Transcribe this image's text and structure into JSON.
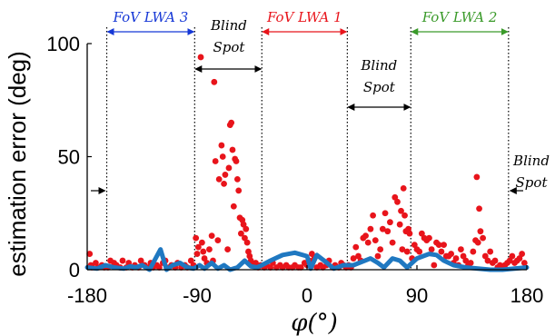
{
  "chart_data": {
    "type": "scatter",
    "xlabel": "φ(°)",
    "ylabel": "estimation error (deg)",
    "xlim": [
      -180,
      180
    ],
    "ylim": [
      0,
      100
    ],
    "x_ticks": [
      -180,
      -90,
      0,
      90,
      180
    ],
    "y_ticks": [
      0,
      50,
      100
    ],
    "x_tick_labels": [
      "-180",
      "-90",
      "0",
      "90",
      "180"
    ],
    "y_tick_labels": [
      "0",
      "50",
      "100"
    ],
    "grid": false,
    "colors": {
      "scatter": "#e8141b",
      "curve": "#1f78c1",
      "lwa1": "#e8141b",
      "lwa2": "#3a9a2a",
      "lwa3": "#1537d6"
    },
    "region_boundaries": [
      -164,
      -92,
      -37,
      33,
      85,
      165
    ],
    "regions": [
      {
        "label": "FoV LWA 3",
        "from": -164,
        "to": -92,
        "color": "#1537d6"
      },
      {
        "label": "Blind Spot",
        "from": -92,
        "to": -37,
        "color": "#000000"
      },
      {
        "label": "FoV LWA 1",
        "from": -37,
        "to": 33,
        "color": "#e8141b"
      },
      {
        "label": "Blind Spot",
        "from": 33,
        "to": 85,
        "color": "#000000"
      },
      {
        "label": "FoV LWA 2",
        "from": 85,
        "to": 165,
        "color": "#3a9a2a"
      },
      {
        "label": "Blind Spot",
        "from": 165,
        "to": 180,
        "color": "#000000"
      }
    ],
    "blind_spot_labels": [
      {
        "line1": "Blind",
        "line2": "Spot"
      },
      {
        "line1": "Blind",
        "line2": "Spot"
      },
      {
        "line1": "Blind",
        "line2": "Spot"
      }
    ],
    "series": [
      {
        "type": "scatter",
        "points": [
          [
            -178,
            7
          ],
          [
            -177,
            2
          ],
          [
            -176,
            1
          ],
          [
            -173,
            3
          ],
          [
            -171,
            1
          ],
          [
            -168,
            2
          ],
          [
            -166,
            1
          ],
          [
            -163,
            1
          ],
          [
            -161,
            4
          ],
          [
            -158,
            3
          ],
          [
            -156,
            2
          ],
          [
            -153,
            1
          ],
          [
            -151,
            4
          ],
          [
            -148,
            1
          ],
          [
            -146,
            3
          ],
          [
            -143,
            1
          ],
          [
            -141,
            2
          ],
          [
            -138,
            1
          ],
          [
            -136,
            4
          ],
          [
            -133,
            2
          ],
          [
            -131,
            1
          ],
          [
            -128,
            3
          ],
          [
            -126,
            1
          ],
          [
            -123,
            2
          ],
          [
            -121,
            1
          ],
          [
            -118,
            3
          ],
          [
            -116,
            4
          ],
          [
            -113,
            1
          ],
          [
            -111,
            2
          ],
          [
            -108,
            1
          ],
          [
            -106,
            3
          ],
          [
            -103,
            1
          ],
          [
            -100,
            2
          ],
          [
            -98,
            1
          ],
          [
            -95,
            4
          ],
          [
            -93,
            2
          ],
          [
            -91,
            14
          ],
          [
            -90,
            7
          ],
          [
            -89,
            10
          ],
          [
            -87,
            94
          ],
          [
            -86,
            12
          ],
          [
            -85,
            8
          ],
          [
            -84,
            5
          ],
          [
            -82,
            3
          ],
          [
            -80,
            9
          ],
          [
            -78,
            15
          ],
          [
            -77,
            4
          ],
          [
            -76,
            83
          ],
          [
            -75,
            48
          ],
          [
            -73,
            13
          ],
          [
            -72,
            40
          ],
          [
            -70,
            55
          ],
          [
            -69,
            50
          ],
          [
            -68,
            38
          ],
          [
            -67,
            42
          ],
          [
            -65,
            9
          ],
          [
            -64,
            45
          ],
          [
            -63,
            64
          ],
          [
            -62,
            65
          ],
          [
            -61,
            53
          ],
          [
            -60,
            28
          ],
          [
            -59,
            49
          ],
          [
            -58,
            48
          ],
          [
            -57,
            40
          ],
          [
            -56,
            35
          ],
          [
            -55,
            23
          ],
          [
            -54,
            16
          ],
          [
            -53,
            22
          ],
          [
            -52,
            20
          ],
          [
            -51,
            14
          ],
          [
            -50,
            18
          ],
          [
            -49,
            12
          ],
          [
            -48,
            8
          ],
          [
            -47,
            6
          ],
          [
            -46,
            4
          ],
          [
            -44,
            2
          ],
          [
            -42,
            3
          ],
          [
            -40,
            1
          ],
          [
            -38,
            2
          ],
          [
            -35,
            1
          ],
          [
            -33,
            2
          ],
          [
            -30,
            1
          ],
          [
            -28,
            3
          ],
          [
            -25,
            1
          ],
          [
            -22,
            2
          ],
          [
            -20,
            1
          ],
          [
            -17,
            2
          ],
          [
            -15,
            1
          ],
          [
            -12,
            1
          ],
          [
            -10,
            2
          ],
          [
            -7,
            1
          ],
          [
            -5,
            1
          ],
          [
            -2,
            3
          ],
          [
            0,
            2
          ],
          [
            2,
            4
          ],
          [
            4,
            7
          ],
          [
            6,
            5
          ],
          [
            8,
            1
          ],
          [
            11,
            2
          ],
          [
            13,
            1
          ],
          [
            16,
            2
          ],
          [
            18,
            4
          ],
          [
            21,
            1
          ],
          [
            23,
            2
          ],
          [
            26,
            1
          ],
          [
            28,
            3
          ],
          [
            30,
            2
          ],
          [
            32,
            1
          ],
          [
            34,
            2
          ],
          [
            36,
            1
          ],
          [
            38,
            5
          ],
          [
            40,
            10
          ],
          [
            42,
            6
          ],
          [
            44,
            4
          ],
          [
            46,
            14
          ],
          [
            48,
            15
          ],
          [
            50,
            12
          ],
          [
            52,
            18
          ],
          [
            54,
            24
          ],
          [
            56,
            13
          ],
          [
            58,
            6
          ],
          [
            60,
            9
          ],
          [
            62,
            18
          ],
          [
            64,
            25
          ],
          [
            66,
            17
          ],
          [
            68,
            21
          ],
          [
            70,
            12
          ],
          [
            72,
            32
          ],
          [
            74,
            30
          ],
          [
            76,
            20
          ],
          [
            77,
            26
          ],
          [
            78,
            9
          ],
          [
            79,
            36
          ],
          [
            80,
            24
          ],
          [
            81,
            17
          ],
          [
            82,
            8
          ],
          [
            83,
            18
          ],
          [
            84,
            16
          ],
          [
            86,
            5
          ],
          [
            88,
            11
          ],
          [
            90,
            9
          ],
          [
            92,
            8
          ],
          [
            94,
            16
          ],
          [
            96,
            14
          ],
          [
            98,
            13
          ],
          [
            100,
            14
          ],
          [
            102,
            9
          ],
          [
            104,
            2
          ],
          [
            106,
            12
          ],
          [
            108,
            11
          ],
          [
            110,
            8
          ],
          [
            112,
            11
          ],
          [
            114,
            6
          ],
          [
            116,
            6
          ],
          [
            118,
            7
          ],
          [
            120,
            3
          ],
          [
            122,
            5
          ],
          [
            124,
            2
          ],
          [
            126,
            9
          ],
          [
            128,
            6
          ],
          [
            130,
            4
          ],
          [
            132,
            2
          ],
          [
            134,
            3
          ],
          [
            136,
            8
          ],
          [
            138,
            13
          ],
          [
            139,
            41
          ],
          [
            140,
            12
          ],
          [
            141,
            27
          ],
          [
            142,
            17
          ],
          [
            144,
            14
          ],
          [
            146,
            6
          ],
          [
            148,
            4
          ],
          [
            150,
            8
          ],
          [
            152,
            3
          ],
          [
            154,
            4
          ],
          [
            156,
            1
          ],
          [
            158,
            2
          ],
          [
            160,
            1
          ],
          [
            162,
            2
          ],
          [
            164,
            3
          ],
          [
            166,
            4
          ],
          [
            168,
            6
          ],
          [
            170,
            3
          ],
          [
            172,
            4
          ],
          [
            174,
            5
          ],
          [
            176,
            7
          ],
          [
            178,
            3
          ]
        ]
      },
      {
        "type": "line",
        "points": [
          [
            -180,
            1
          ],
          [
            -172,
            0.5
          ],
          [
            -165,
            2
          ],
          [
            -158,
            1
          ],
          [
            -150,
            0.5
          ],
          [
            -145,
            1.5
          ],
          [
            -140,
            1
          ],
          [
            -135,
            2
          ],
          [
            -129,
            0
          ],
          [
            -124,
            5
          ],
          [
            -120,
            9
          ],
          [
            -115,
            0
          ],
          [
            -110,
            2
          ],
          [
            -104,
            3
          ],
          [
            -98,
            1
          ],
          [
            -93,
            0.5
          ],
          [
            -88,
            2
          ],
          [
            -84,
            0.5
          ],
          [
            -78,
            3
          ],
          [
            -73,
            0.5
          ],
          [
            -68,
            2
          ],
          [
            -63,
            0
          ],
          [
            -57,
            1
          ],
          [
            -51,
            4
          ],
          [
            -46,
            1.5
          ],
          [
            -41,
            1
          ],
          [
            -37,
            2
          ],
          [
            -30,
            4
          ],
          [
            -20,
            6.5
          ],
          [
            -10,
            7.5
          ],
          [
            0,
            6
          ],
          [
            3,
            0.5
          ],
          [
            8,
            6.5
          ],
          [
            14,
            4
          ],
          [
            22,
            0.5
          ],
          [
            30,
            2
          ],
          [
            38,
            2
          ],
          [
            45,
            3.5
          ],
          [
            52,
            5
          ],
          [
            58,
            3
          ],
          [
            63,
            1
          ],
          [
            70,
            5
          ],
          [
            76,
            4
          ],
          [
            82,
            1
          ],
          [
            90,
            5
          ],
          [
            100,
            7
          ],
          [
            106,
            6.5
          ],
          [
            112,
            4
          ],
          [
            120,
            2
          ],
          [
            130,
            1
          ],
          [
            140,
            0.5
          ],
          [
            150,
            0
          ],
          [
            160,
            0
          ],
          [
            170,
            0.5
          ],
          [
            180,
            1
          ]
        ]
      }
    ]
  }
}
